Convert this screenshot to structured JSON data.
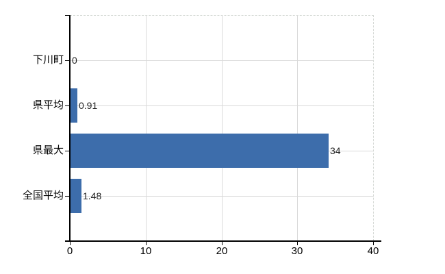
{
  "chart_data": {
    "type": "bar",
    "orientation": "horizontal",
    "title": "",
    "xlabel": "",
    "ylabel": "",
    "categories": [
      "下川町",
      "県平均",
      "県最大",
      "全国平均"
    ],
    "values": [
      0,
      0.91,
      34,
      1.48
    ],
    "value_labels": [
      "0",
      "0.91",
      "34",
      "1.48"
    ],
    "xlim": [
      0,
      40
    ],
    "xticks": [
      0,
      10,
      20,
      30,
      40
    ],
    "xtick_labels": [
      "0",
      "10",
      "20",
      "30",
      "40"
    ],
    "grid": true,
    "legend": false,
    "plot_border": "top and right, dashed",
    "colors": {
      "bar": "#3d6dab",
      "grid": "#d9d9d9",
      "plot_border": "#d4d8d4",
      "axis": "#000000",
      "tick_label": "#000000",
      "category_label": "#000000",
      "value_label": "#222222",
      "background": "#ffffff"
    }
  }
}
